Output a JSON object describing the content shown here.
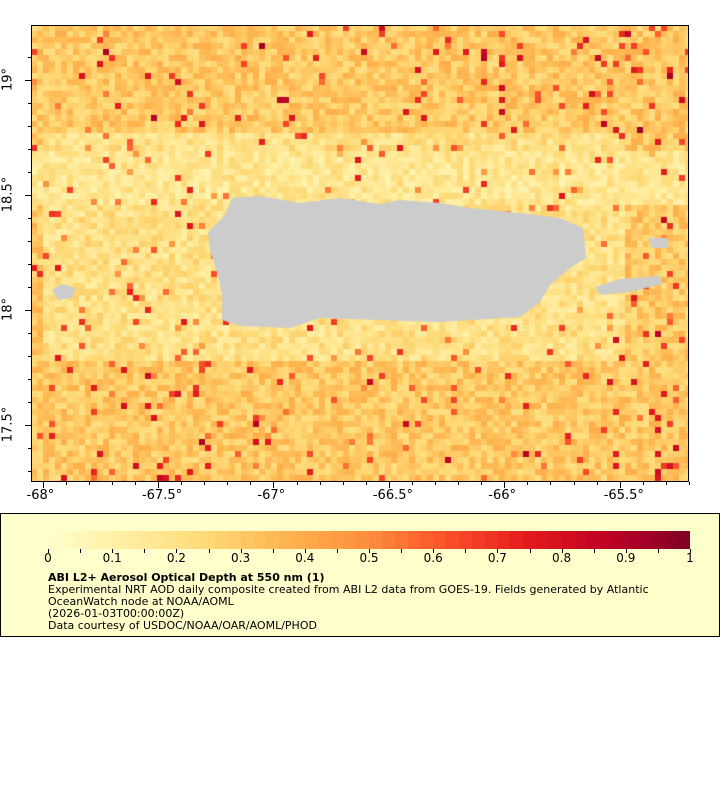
{
  "map": {
    "lon_ticks": [
      "-68°",
      "-67.5°",
      "-67°",
      "-66.5°",
      "-66°",
      "-65.5°"
    ],
    "lat_ticks": [
      "19°",
      "18.5°",
      "18°",
      "17.5°"
    ],
    "lon_range": [
      -68.05,
      -65.2
    ],
    "lat_range": [
      17.25,
      19.24
    ],
    "land_color": "#cccccc"
  },
  "colorbar": {
    "min": 0,
    "max": 1,
    "tick_labels": [
      "0",
      "0.1",
      "0.2",
      "0.3",
      "0.4",
      "0.5",
      "0.6",
      "0.7",
      "0.8",
      "0.9",
      "1"
    ],
    "colors": [
      "#ffffcc",
      "#ffeda0",
      "#fed976",
      "#feb24c",
      "#fd8d3c",
      "#fc4e2a",
      "#e31a1c",
      "#bd0026",
      "#800026"
    ]
  },
  "legend": {
    "title": "ABI L2+ Aerosol Optical Depth at 550 nm (1)",
    "line1": "Experimental NRT AOD daily composite created from ABI L2 data from GOES-19. Fields generated by Atlantic",
    "line2": "OceanWatch node at NOAA/AOML",
    "line3": "(2026-01-03T00:00:00Z)",
    "line4": "Data courtesy of USDOC/NOAA/OAR/AOML/PHOD"
  }
}
